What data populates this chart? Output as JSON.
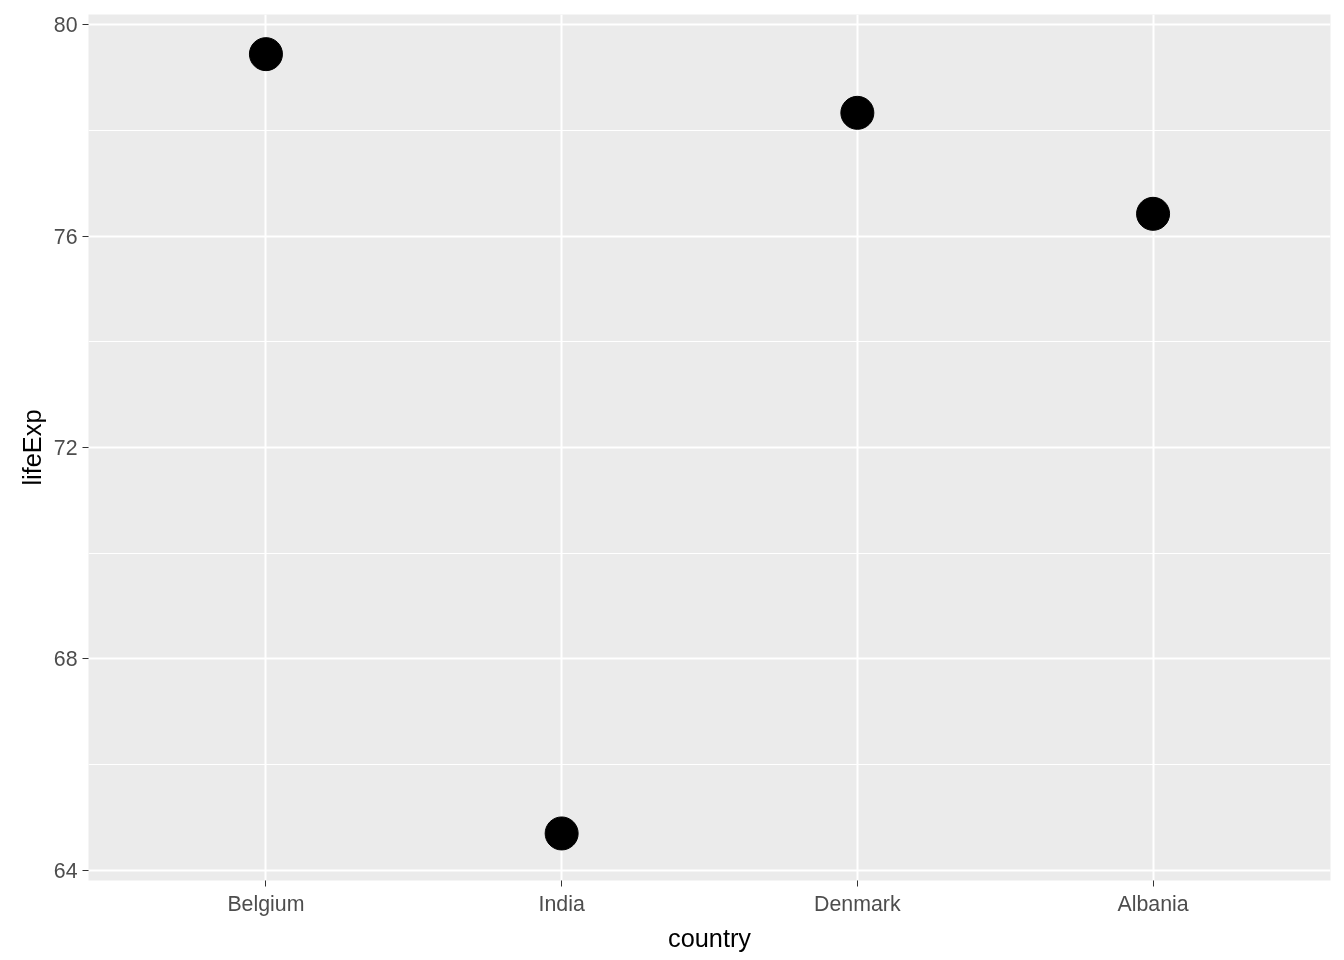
{
  "chart_data": {
    "type": "scatter",
    "xlabel": "country",
    "ylabel": "lifeExp",
    "categories": [
      "Belgium",
      "India",
      "Denmark",
      "Albania"
    ],
    "series": [
      {
        "color": "#000000",
        "values": [
          79.44,
          64.7,
          78.33,
          76.42
        ]
      }
    ],
    "ylim": [
      63.81,
      80.19
    ],
    "yticks": [
      64,
      68,
      72,
      76,
      80
    ],
    "grid": true,
    "marker": "circle"
  }
}
